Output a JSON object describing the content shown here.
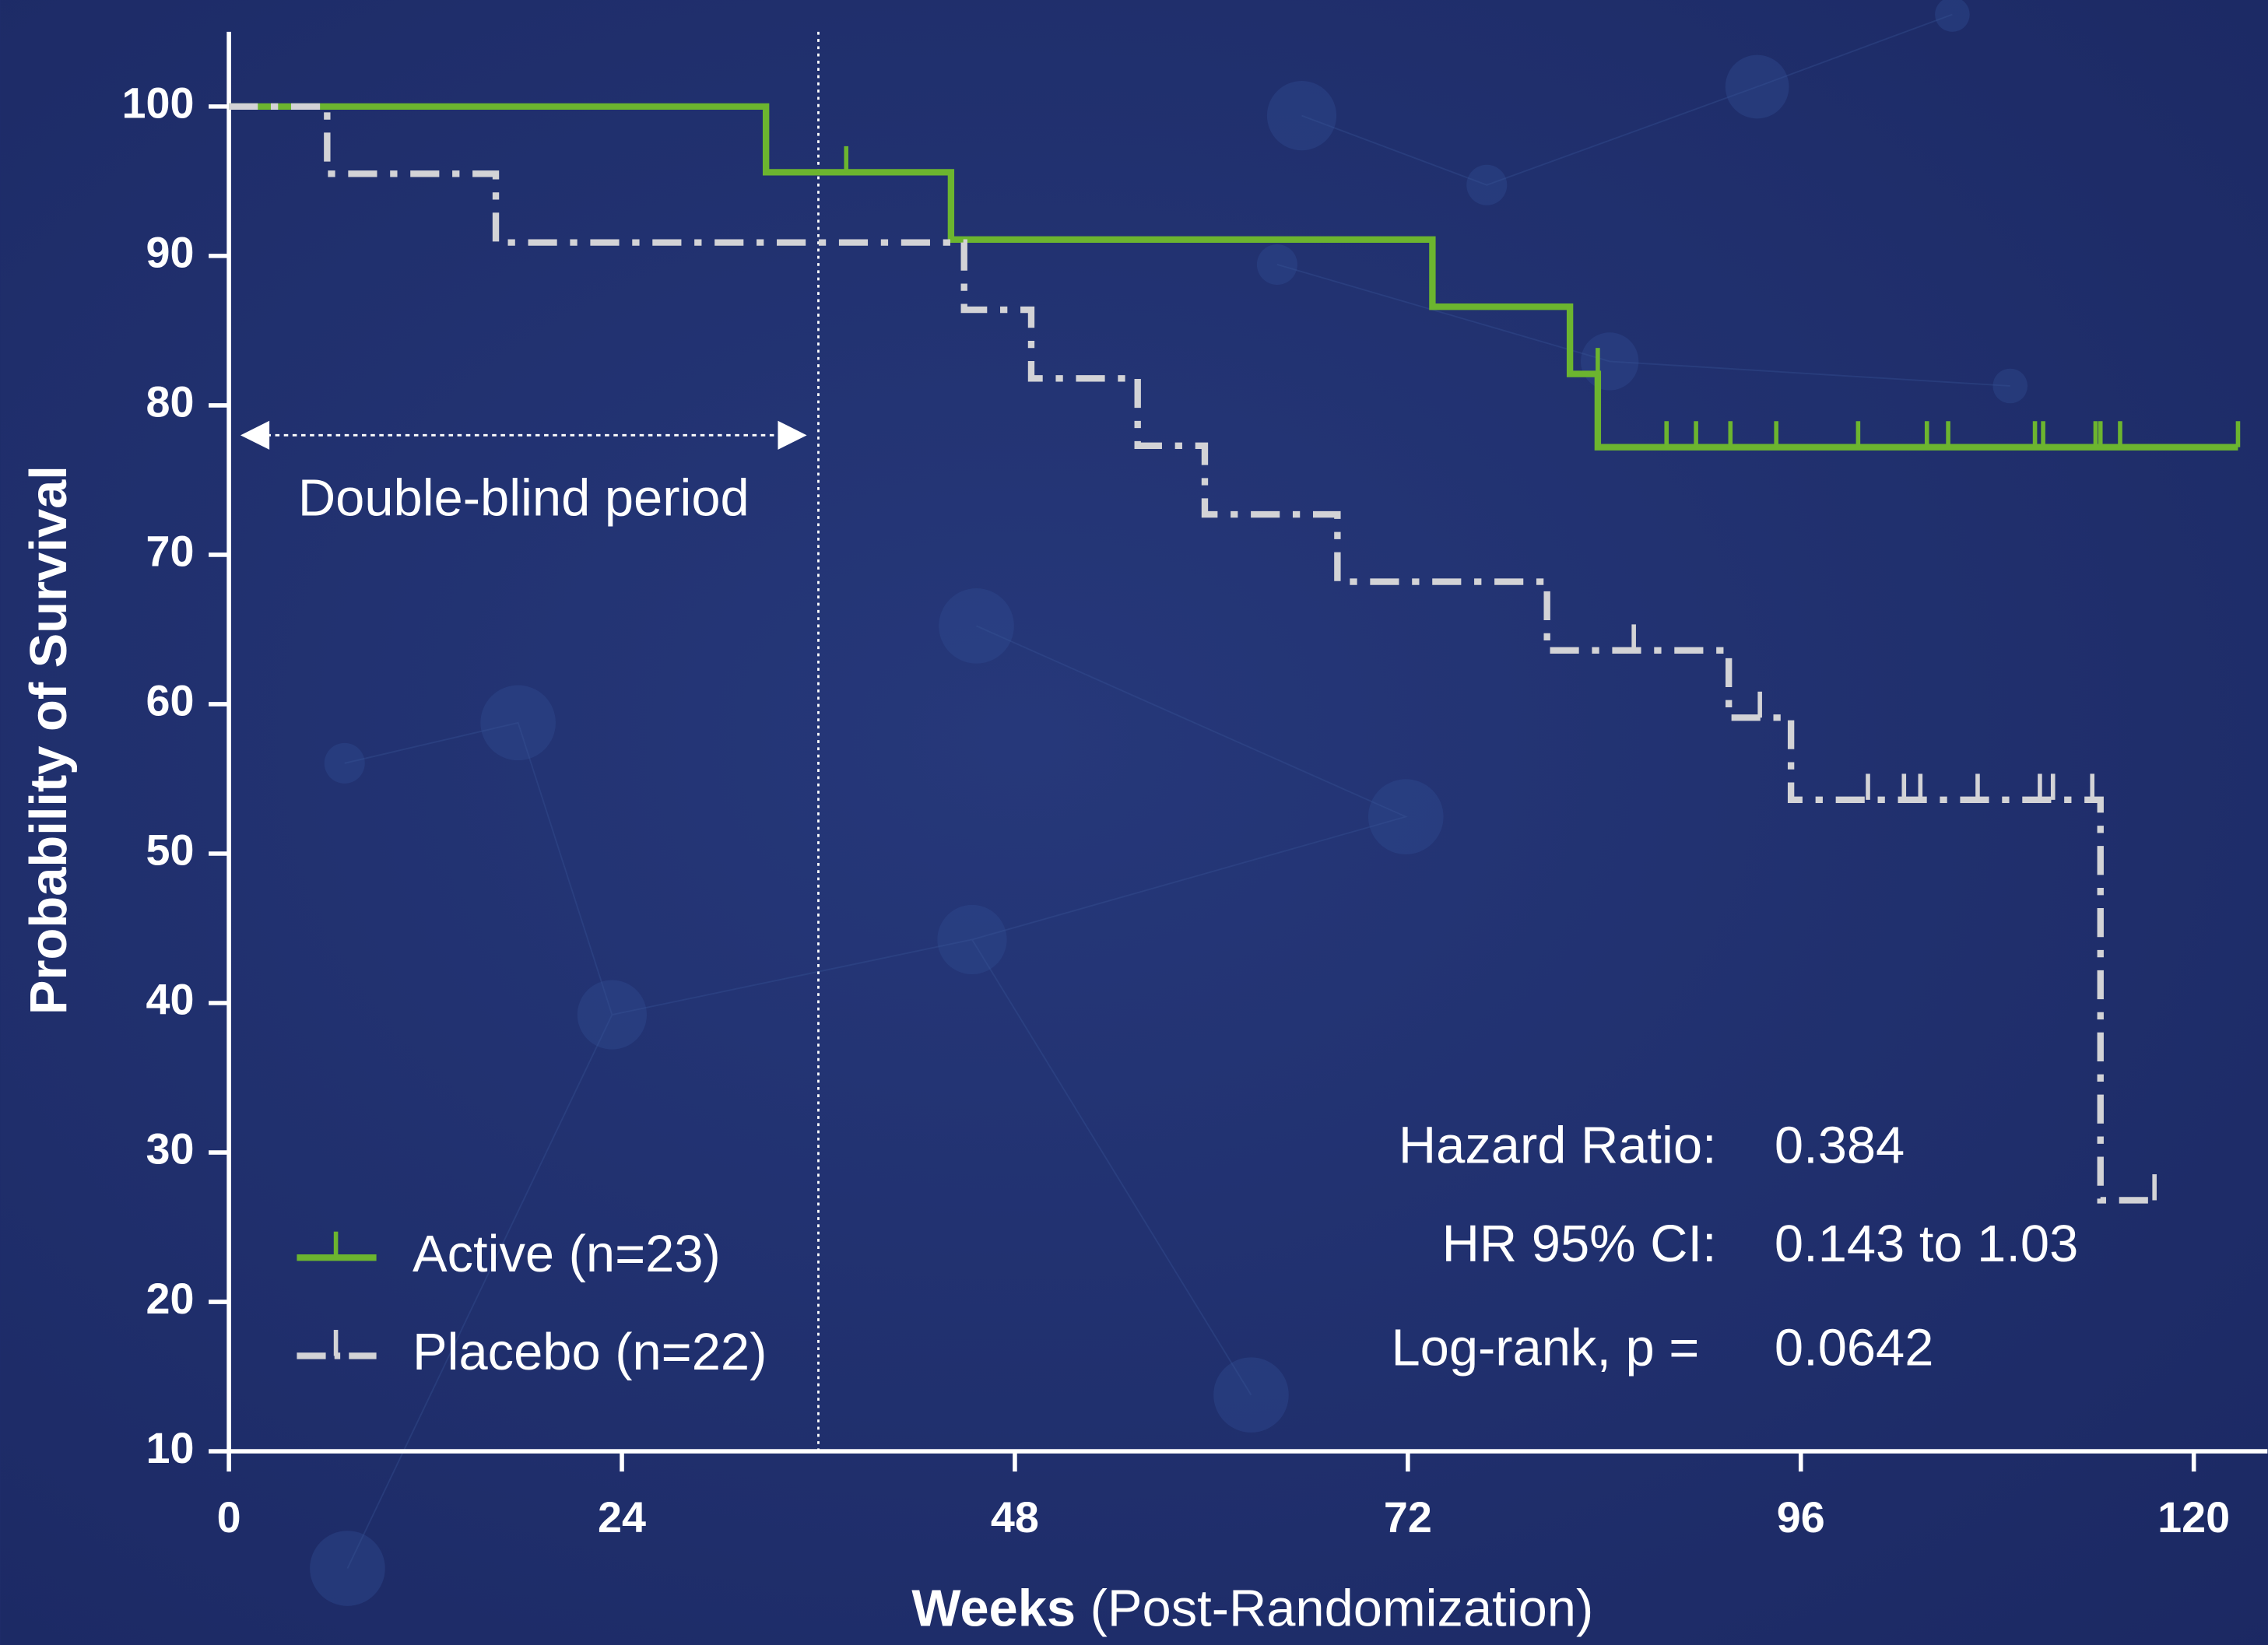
{
  "chart_data": {
    "type": "step",
    "ylabel": "Probability of Survival",
    "xlabel_bold": "Weeks",
    "xlabel": "(Post-Randomization)",
    "xlim": [
      0,
      124.5
    ],
    "xticks": [
      0,
      24,
      48,
      72,
      96,
      120
    ],
    "ylim": [
      10,
      105
    ],
    "yticks": [
      10,
      20,
      30,
      40,
      50,
      60,
      70,
      80,
      90,
      100
    ],
    "legend": "lower left",
    "series": [
      {
        "name": "Active (n=23)",
        "color": "#6cb52f",
        "style": "solid",
        "x": [
          0,
          32.8,
          44.1,
          73.5,
          81.9,
          83.6,
          122.7
        ],
        "values": [
          100,
          95.6,
          91.1,
          86.6,
          82.1,
          77.2,
          77.2
        ],
        "censored_x": [
          37.7,
          83.6,
          87.8,
          89.6,
          91.7,
          94.5,
          99.5,
          103.7,
          105,
          110.3,
          110.8,
          114,
          114.3,
          115.5,
          122.7
        ],
        "censored_values": [
          95.6,
          82.1,
          77.2,
          77.2,
          77.2,
          77.2,
          77.2,
          77.2,
          77.2,
          77.2,
          77.2,
          77.2,
          77.2,
          77.2,
          77.2
        ]
      },
      {
        "name": "Placebo (n=22)",
        "color": "#d3d3d6",
        "style": "dashdot",
        "x": [
          0,
          6.0,
          16.3,
          44.9,
          49.0,
          55.5,
          59.6,
          67.7,
          80.5,
          91.6,
          95.4,
          114.3,
          117.6
        ],
        "values": [
          100,
          95.5,
          90.9,
          86.4,
          81.8,
          77.3,
          72.7,
          68.2,
          63.6,
          59.1,
          53.6,
          26.8,
          26.8
        ],
        "censored_x": [
          85.8,
          93.5,
          100.1,
          102.3,
          103.3,
          106.8,
          110.6,
          111.4,
          113.8,
          117.6
        ],
        "censored_values": [
          63.6,
          59.1,
          53.6,
          53.6,
          53.6,
          53.6,
          53.6,
          53.6,
          53.6,
          26.8
        ]
      }
    ],
    "period": {
      "label": "Double-blind period",
      "x": [
        0,
        36
      ],
      "y": 78
    },
    "stats": [
      {
        "label": "Hazard Ratio:",
        "value": "0.384"
      },
      {
        "label": "HR 95% CI:",
        "value": "0.143 to 1.03"
      },
      {
        "label": "Log-rank, p =",
        "value": "0.0642"
      }
    ]
  }
}
